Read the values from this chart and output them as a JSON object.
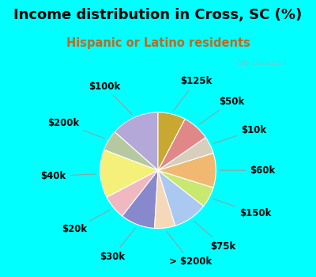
{
  "title": "Income distribution in Cross, SC (%)",
  "subtitle": "Hispanic or Latino residents",
  "bg_color": "#00ffff",
  "chart_bg": "#d8f0e4",
  "slices": [
    {
      "label": "$100k",
      "value": 14,
      "color": "#b3a8d8"
    },
    {
      "label": "$200k",
      "value": 6,
      "color": "#b5c8a0"
    },
    {
      "label": "$40k",
      "value": 14,
      "color": "#f5f07a"
    },
    {
      "label": "$20k",
      "value": 7,
      "color": "#f0b8c0"
    },
    {
      "label": "$30k",
      "value": 10,
      "color": "#8888cc"
    },
    {
      "label": "> $200k",
      "value": 6,
      "color": "#f5d8b8"
    },
    {
      "label": "$75k",
      "value": 10,
      "color": "#aac8f0"
    },
    {
      "label": "$150k",
      "value": 6,
      "color": "#c8e870"
    },
    {
      "label": "$60k",
      "value": 10,
      "color": "#f0b870"
    },
    {
      "label": "$10k",
      "value": 5,
      "color": "#d8cebc"
    },
    {
      "label": "$50k",
      "value": 8,
      "color": "#e08888"
    },
    {
      "label": "$125k",
      "value": 8,
      "color": "#c8a830"
    }
  ],
  "watermark": "City-Data.com",
  "start_angle": 90,
  "label_fontsize": 8.5,
  "title_fontsize": 13,
  "subtitle_fontsize": 10.5,
  "subtitle_color": "#c06820"
}
